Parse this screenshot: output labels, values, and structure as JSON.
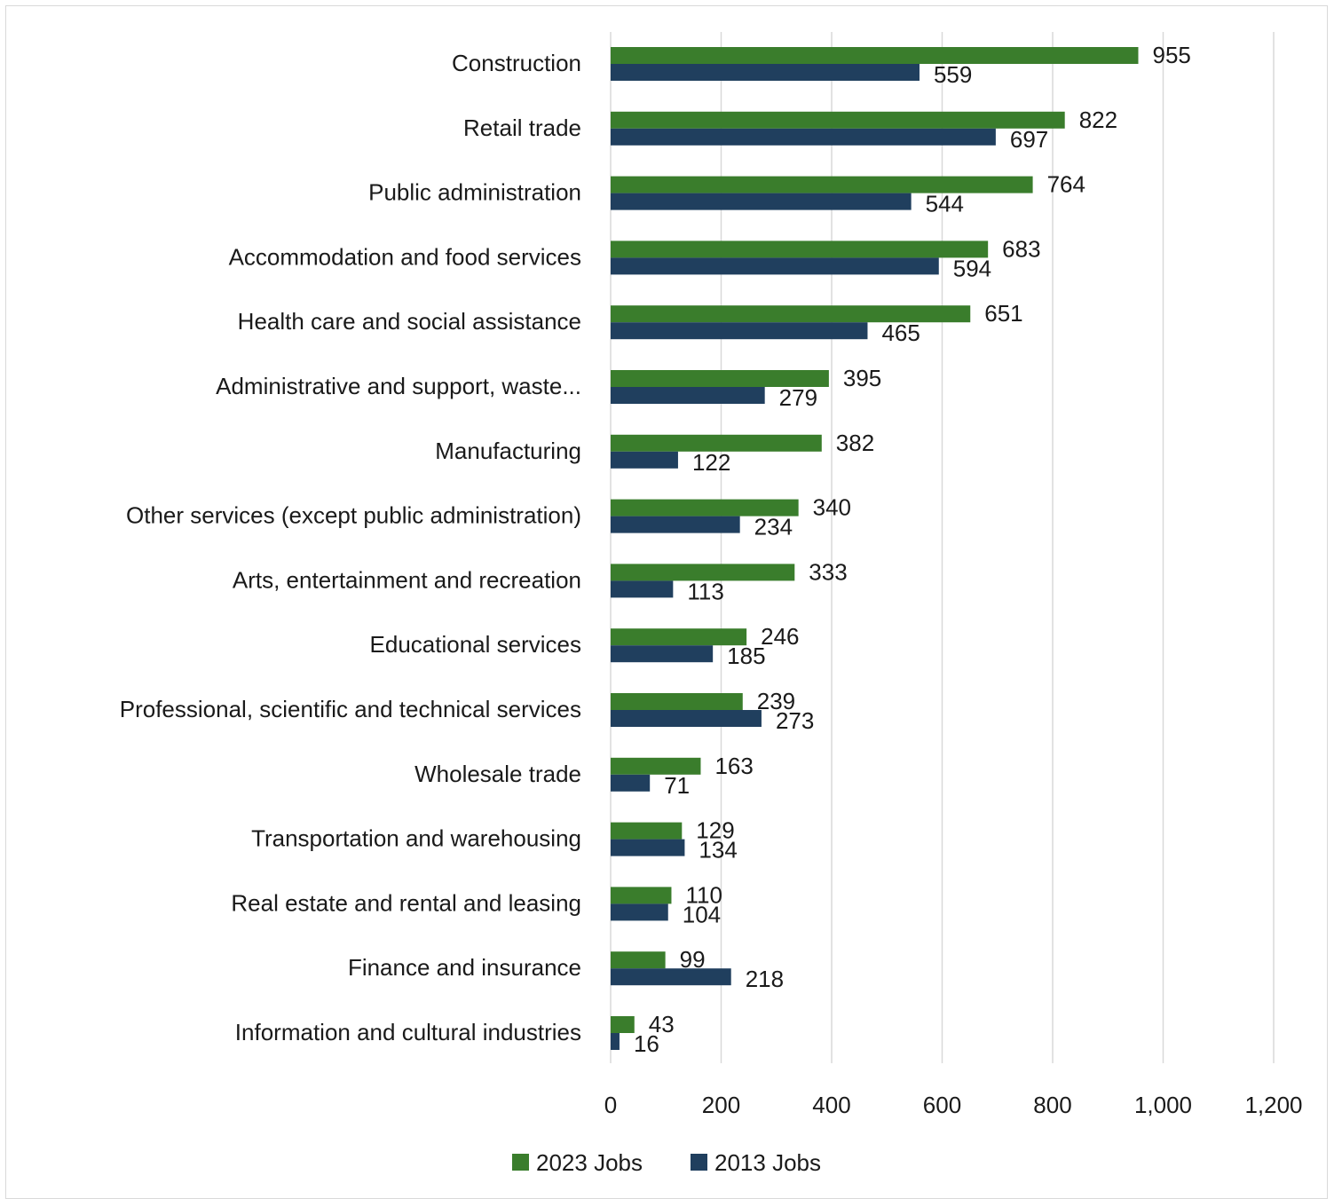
{
  "chart_data": {
    "type": "bar",
    "orientation": "horizontal",
    "categories": [
      "Construction",
      "Retail trade",
      "Public administration",
      "Accommodation and food services",
      "Health care and social assistance",
      "Administrative and support, waste...",
      "Manufacturing",
      "Other services (except public administration)",
      "Arts, entertainment and recreation",
      "Educational services",
      "Professional, scientific and technical services",
      "Wholesale trade",
      "Transportation and warehousing",
      "Real estate and rental and leasing",
      "Finance and insurance",
      "Information and cultural industries"
    ],
    "series": [
      {
        "name": "2023 Jobs",
        "color": "#3a7d2c",
        "values": [
          955,
          822,
          764,
          683,
          651,
          395,
          382,
          340,
          333,
          246,
          239,
          163,
          129,
          110,
          99,
          43
        ]
      },
      {
        "name": "2013 Jobs",
        "color": "#203f5e",
        "values": [
          559,
          697,
          544,
          594,
          465,
          279,
          122,
          234,
          113,
          185,
          273,
          71,
          134,
          104,
          218,
          16
        ]
      }
    ],
    "xlim": [
      0,
      1200
    ],
    "xticks": [
      0,
      200,
      400,
      600,
      800,
      1000,
      1200
    ],
    "xtick_labels": [
      "0",
      "200",
      "400",
      "600",
      "800",
      "1,000",
      "1,200"
    ],
    "grid": "vertical",
    "legend": "bottom",
    "title": "",
    "xlabel": "",
    "ylabel": ""
  }
}
